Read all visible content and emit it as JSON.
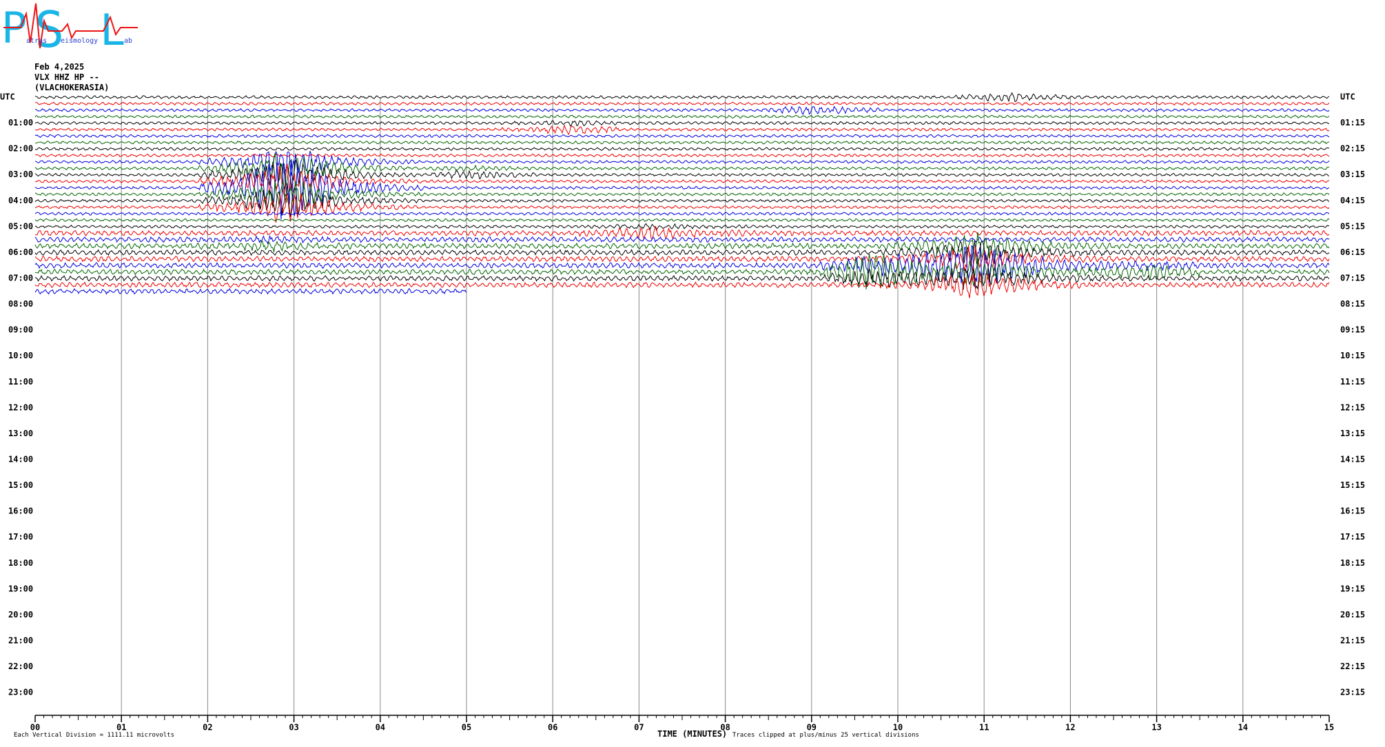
{
  "header": {
    "logo": {
      "letters": [
        "P",
        "S",
        "L"
      ],
      "words": [
        "atras",
        "eismology",
        "ab"
      ]
    },
    "date": "Feb 4,2025",
    "station": "VLX HHZ HP --",
    "location": "(VLACHOKERASIA)"
  },
  "left_labels": [
    "UTC",
    "01:00",
    "02:00",
    "03:00",
    "04:00",
    "05:00",
    "06:00",
    "07:00",
    "08:00",
    "09:00",
    "10:00",
    "11:00",
    "12:00",
    "13:00",
    "14:00",
    "15:00",
    "16:00",
    "17:00",
    "18:00",
    "19:00",
    "20:00",
    "21:00",
    "22:00",
    "23:00"
  ],
  "right_labels": [
    "UTC",
    "01:15",
    "02:15",
    "03:15",
    "04:15",
    "05:15",
    "06:15",
    "07:15",
    "08:15",
    "09:15",
    "10:15",
    "11:15",
    "12:15",
    "13:15",
    "14:15",
    "15:15",
    "16:15",
    "17:15",
    "18:15",
    "19:15",
    "20:15",
    "21:15",
    "22:15",
    "23:15"
  ],
  "x_ticks": [
    "00",
    "01",
    "02",
    "03",
    "04",
    "05",
    "06",
    "07",
    "08",
    "09",
    "10",
    "11",
    "12",
    "13",
    "14",
    "15"
  ],
  "x_axis_title": "TIME (MINUTES)",
  "footer_left": "Each Vertical Division = 1111.11 microvolts",
  "footer_right": "Traces clipped at plus/minus 25 vertical divisions"
}
